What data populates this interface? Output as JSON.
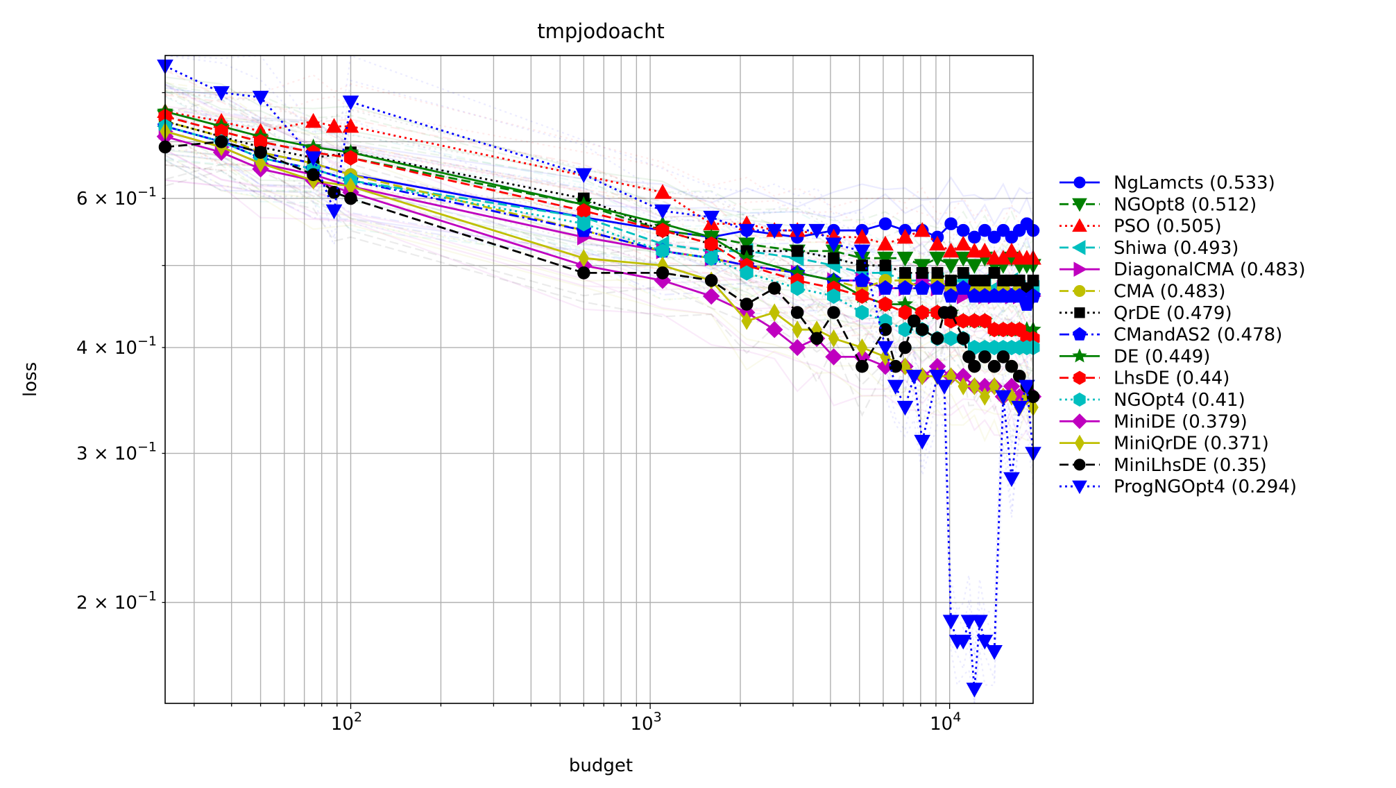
{
  "chart_data": {
    "type": "line",
    "title": "tmpjodoacht",
    "xlabel": "budget",
    "ylabel": "loss",
    "xscale": "log",
    "yscale": "log",
    "xlim": [
      24,
      19000
    ],
    "ylim": [
      0.152,
      0.885
    ],
    "grid": true,
    "legend_position": "right",
    "x_ticks": [
      {
        "value": 100,
        "base": "10",
        "exp": "2"
      },
      {
        "value": 1000,
        "base": "10",
        "exp": "3"
      },
      {
        "value": 10000,
        "base": "10",
        "exp": "4"
      }
    ],
    "y_ticks": [
      {
        "value": 0.2,
        "mant": "2",
        "base": "10",
        "exp": "−1"
      },
      {
        "value": 0.3,
        "mant": "3",
        "base": "10",
        "exp": "−1"
      },
      {
        "value": 0.4,
        "mant": "4",
        "base": "10",
        "exp": "−1"
      },
      {
        "value": 0.6,
        "mant": "6",
        "base": "10",
        "exp": "−1"
      }
    ],
    "series": [
      {
        "name": "NgLamcts (0.533)",
        "color": "#0000ff",
        "dash": "solid",
        "marker": "circle",
        "x": [
          24,
          37,
          50,
          75,
          100,
          600,
          1100,
          1600,
          2100,
          3100,
          4100,
          5100,
          6100,
          7100,
          8100,
          9100,
          10100,
          11100,
          12100,
          13100,
          14100,
          15100,
          16100,
          17100,
          18100,
          19000
        ],
        "y": [
          0.73,
          0.7,
          0.68,
          0.66,
          0.64,
          0.57,
          0.55,
          0.54,
          0.55,
          0.54,
          0.55,
          0.55,
          0.56,
          0.55,
          0.55,
          0.54,
          0.56,
          0.55,
          0.54,
          0.55,
          0.54,
          0.55,
          0.54,
          0.55,
          0.56,
          0.55
        ]
      },
      {
        "name": "NGOpt8 (0.512)",
        "color": "#008000",
        "dash": "dashed",
        "marker": "tri-down",
        "x": [
          24,
          37,
          50,
          75,
          100,
          600,
          1100,
          1600,
          2100,
          3100,
          4100,
          5100,
          6100,
          7100,
          8100,
          9100,
          10100,
          11100,
          12100,
          13100,
          14100,
          15100,
          16100,
          17100,
          18100,
          19000
        ],
        "y": [
          0.75,
          0.72,
          0.7,
          0.68,
          0.67,
          0.59,
          0.55,
          0.54,
          0.53,
          0.52,
          0.52,
          0.51,
          0.51,
          0.51,
          0.5,
          0.51,
          0.5,
          0.51,
          0.5,
          0.51,
          0.5,
          0.5,
          0.51,
          0.5,
          0.5,
          0.5
        ]
      },
      {
        "name": "PSO (0.505)",
        "color": "#ff0000",
        "dash": "dotted",
        "marker": "tri-up",
        "x": [
          24,
          37,
          50,
          75,
          88,
          100,
          1100,
          1600,
          2100,
          2600,
          3100,
          4100,
          5100,
          6100,
          7100,
          8100,
          9100,
          10100,
          11100,
          12100,
          13100,
          14100,
          15100,
          16100,
          17100,
          18100,
          19000
        ],
        "y": [
          0.76,
          0.74,
          0.72,
          0.74,
          0.73,
          0.73,
          0.61,
          0.56,
          0.56,
          0.55,
          0.55,
          0.54,
          0.54,
          0.53,
          0.54,
          0.55,
          0.53,
          0.52,
          0.53,
          0.52,
          0.52,
          0.51,
          0.51,
          0.52,
          0.51,
          0.51,
          0.51
        ]
      },
      {
        "name": "Shiwa (0.493)",
        "color": "#00bfbf",
        "dash": "dashed",
        "marker": "tri-left",
        "x": [
          24,
          37,
          50,
          75,
          100,
          600,
          1100,
          1600,
          2100,
          3100,
          4100,
          5100,
          6100,
          7100,
          8100,
          9100,
          10100,
          11100,
          12100,
          13100,
          14100,
          15100,
          16100,
          17100,
          18100,
          19000
        ],
        "y": [
          0.73,
          0.7,
          0.67,
          0.65,
          0.63,
          0.57,
          0.53,
          0.52,
          0.52,
          0.51,
          0.5,
          0.49,
          0.49,
          0.48,
          0.48,
          0.48,
          0.47,
          0.48,
          0.47,
          0.48,
          0.47,
          0.47,
          0.48,
          0.47,
          0.47,
          0.47
        ]
      },
      {
        "name": "DiagonalCMA (0.483)",
        "color": "#bf00bf",
        "dash": "solid",
        "marker": "tri-right",
        "x": [
          24,
          37,
          50,
          75,
          100,
          600,
          1100,
          1600,
          2100,
          3100,
          4100,
          5100,
          6100,
          7100,
          8100,
          9100,
          10100,
          11100,
          12100,
          13100,
          14100,
          15100,
          16100,
          17100,
          18100,
          19000
        ],
        "y": [
          0.72,
          0.69,
          0.66,
          0.64,
          0.62,
          0.54,
          0.52,
          0.51,
          0.5,
          0.49,
          0.48,
          0.48,
          0.47,
          0.47,
          0.48,
          0.47,
          0.47,
          0.46,
          0.47,
          0.46,
          0.46,
          0.47,
          0.46,
          0.46,
          0.46,
          0.46
        ]
      },
      {
        "name": "CMA (0.483)",
        "color": "#bfbf00",
        "dash": "dashed",
        "marker": "circle",
        "x": [
          24,
          37,
          50,
          75,
          100,
          600,
          1100,
          1600,
          2100,
          3100,
          4100,
          5100,
          6100,
          7100,
          8100,
          9100,
          10100,
          11100,
          12100,
          13100,
          14100,
          15100,
          16100,
          17100,
          18100,
          19000
        ],
        "y": [
          0.74,
          0.71,
          0.68,
          0.66,
          0.64,
          0.55,
          0.52,
          0.51,
          0.5,
          0.49,
          0.48,
          0.47,
          0.48,
          0.48,
          0.47,
          0.48,
          0.47,
          0.47,
          0.47,
          0.47,
          0.46,
          0.47,
          0.46,
          0.47,
          0.46,
          0.46
        ]
      },
      {
        "name": "QrDE (0.479)",
        "color": "#000000",
        "dash": "dotted",
        "marker": "square",
        "x": [
          24,
          37,
          50,
          75,
          100,
          600,
          1100,
          1600,
          2100,
          3100,
          4100,
          5100,
          6100,
          7100,
          8100,
          9100,
          10100,
          11100,
          12100,
          13100,
          14100,
          15100,
          16100,
          17100,
          18100,
          19000
        ],
        "y": [
          0.74,
          0.71,
          0.69,
          0.67,
          0.68,
          0.6,
          0.55,
          0.53,
          0.52,
          0.52,
          0.51,
          0.5,
          0.5,
          0.49,
          0.49,
          0.49,
          0.48,
          0.49,
          0.48,
          0.48,
          0.49,
          0.48,
          0.48,
          0.48,
          0.47,
          0.48
        ]
      },
      {
        "name": "CMandAS2 (0.478)",
        "color": "#0000ff",
        "dash": "dashdot",
        "marker": "pentagon",
        "x": [
          24,
          37,
          50,
          75,
          100,
          600,
          1100,
          1600,
          2100,
          3100,
          4100,
          5100,
          6100,
          7100,
          8100,
          9100,
          10100,
          11100,
          12100,
          13100,
          14100,
          15100,
          16100,
          17100,
          18100,
          19000
        ],
        "y": [
          0.73,
          0.7,
          0.67,
          0.65,
          0.63,
          0.55,
          0.52,
          0.51,
          0.5,
          0.49,
          0.48,
          0.48,
          0.47,
          0.47,
          0.47,
          0.47,
          0.46,
          0.47,
          0.46,
          0.46,
          0.46,
          0.46,
          0.46,
          0.46,
          0.45,
          0.46
        ]
      },
      {
        "name": "DE (0.449)",
        "color": "#008000",
        "dash": "solid",
        "marker": "star",
        "x": [
          24,
          37,
          50,
          75,
          100,
          600,
          1100,
          1600,
          2100,
          3100,
          4100,
          5100,
          6100,
          7100,
          8100,
          9100,
          10100,
          11100,
          12100,
          13100,
          14100,
          15100,
          16100,
          17100,
          18100,
          19000
        ],
        "y": [
          0.76,
          0.73,
          0.71,
          0.69,
          0.68,
          0.59,
          0.56,
          0.54,
          0.51,
          0.49,
          0.48,
          0.46,
          0.45,
          0.45,
          0.44,
          0.44,
          0.44,
          0.43,
          0.43,
          0.43,
          0.42,
          0.42,
          0.42,
          0.42,
          0.42,
          0.42
        ]
      },
      {
        "name": "LhsDE (0.44)",
        "color": "#ff0000",
        "dash": "dashed",
        "marker": "hexagon",
        "x": [
          24,
          37,
          50,
          75,
          100,
          600,
          1100,
          1600,
          2100,
          3100,
          4100,
          5100,
          6100,
          7100,
          8100,
          9100,
          10100,
          11100,
          12100,
          13100,
          14100,
          15100,
          16100,
          17100,
          18100,
          19000
        ],
        "y": [
          0.75,
          0.72,
          0.7,
          0.68,
          0.67,
          0.58,
          0.55,
          0.53,
          0.5,
          0.48,
          0.47,
          0.46,
          0.45,
          0.44,
          0.44,
          0.44,
          0.43,
          0.43,
          0.43,
          0.43,
          0.42,
          0.42,
          0.42,
          0.42,
          0.41,
          0.41
        ]
      },
      {
        "name": "NGOpt4 (0.41)",
        "color": "#00bfbf",
        "dash": "dotted",
        "marker": "hexagon",
        "x": [
          24,
          37,
          50,
          75,
          100,
          600,
          1100,
          1600,
          2100,
          3100,
          4100,
          5100,
          6100,
          7100,
          8100,
          9100,
          10100,
          11100,
          12100,
          13100,
          14100,
          15100,
          16100,
          17100,
          18100,
          19000
        ],
        "y": [
          0.73,
          0.7,
          0.67,
          0.65,
          0.63,
          0.56,
          0.52,
          0.51,
          0.49,
          0.47,
          0.46,
          0.44,
          0.43,
          0.42,
          0.42,
          0.41,
          0.41,
          0.41,
          0.4,
          0.4,
          0.4,
          0.4,
          0.4,
          0.4,
          0.4,
          0.4
        ]
      },
      {
        "name": "MiniDE (0.379)",
        "color": "#bf00bf",
        "dash": "solid",
        "marker": "diamond",
        "x": [
          24,
          37,
          50,
          75,
          100,
          600,
          1100,
          1600,
          2100,
          2600,
          3100,
          3600,
          4100,
          5100,
          6100,
          7100,
          8100,
          9100,
          10100,
          11100,
          12100,
          13100,
          14100,
          15100,
          16100,
          17100,
          18100,
          19000
        ],
        "y": [
          0.71,
          0.68,
          0.65,
          0.63,
          0.61,
          0.5,
          0.48,
          0.46,
          0.44,
          0.42,
          0.4,
          0.41,
          0.39,
          0.39,
          0.38,
          0.38,
          0.37,
          0.38,
          0.37,
          0.37,
          0.36,
          0.36,
          0.36,
          0.35,
          0.36,
          0.35,
          0.35,
          0.35
        ]
      },
      {
        "name": "MiniQrDE (0.371)",
        "color": "#bfbf00",
        "dash": "solid",
        "marker": "thin-diamond",
        "x": [
          24,
          37,
          50,
          75,
          100,
          600,
          1100,
          1600,
          2100,
          2600,
          3100,
          3600,
          4100,
          5100,
          6100,
          7100,
          8100,
          9100,
          10100,
          11100,
          12100,
          13100,
          14100,
          15100,
          16100,
          17100,
          18100,
          19000
        ],
        "y": [
          0.72,
          0.69,
          0.66,
          0.63,
          0.62,
          0.51,
          0.5,
          0.48,
          0.43,
          0.44,
          0.42,
          0.42,
          0.41,
          0.4,
          0.39,
          0.38,
          0.37,
          0.37,
          0.37,
          0.36,
          0.36,
          0.35,
          0.36,
          0.35,
          0.35,
          0.34,
          0.35,
          0.34
        ]
      },
      {
        "name": "MiniLhsDE (0.35)",
        "color": "#000000",
        "dash": "dashed",
        "marker": "circle",
        "x": [
          24,
          37,
          50,
          75,
          88,
          100,
          600,
          1100,
          1600,
          2100,
          2600,
          3100,
          3600,
          4100,
          5100,
          6100,
          6600,
          7100,
          7600,
          8100,
          9100,
          9600,
          10100,
          11100,
          11600,
          12100,
          13100,
          14100,
          15100,
          16100,
          17100,
          18100,
          19000
        ],
        "y": [
          0.69,
          0.7,
          0.68,
          0.64,
          0.61,
          0.6,
          0.49,
          0.49,
          0.48,
          0.45,
          0.47,
          0.44,
          0.41,
          0.44,
          0.38,
          0.42,
          0.38,
          0.4,
          0.43,
          0.42,
          0.41,
          0.44,
          0.44,
          0.41,
          0.39,
          0.38,
          0.39,
          0.38,
          0.39,
          0.38,
          0.37,
          0.36,
          0.35
        ]
      },
      {
        "name": "ProgNGOpt4 (0.294)",
        "color": "#0000ff",
        "dash": "dotted",
        "marker": "tri-down",
        "x": [
          24,
          37,
          50,
          75,
          88,
          100,
          600,
          1100,
          1600,
          2100,
          2600,
          3100,
          3600,
          4100,
          5100,
          6100,
          6600,
          7100,
          7600,
          8100,
          9100,
          9600,
          10100,
          10600,
          11100,
          11600,
          12100,
          12600,
          13100,
          14100,
          15100,
          16100,
          17100,
          18100,
          19000
        ],
        "y": [
          0.86,
          0.8,
          0.79,
          0.67,
          0.58,
          0.78,
          0.64,
          0.58,
          0.57,
          0.55,
          0.55,
          0.55,
          0.55,
          0.53,
          0.52,
          0.4,
          0.36,
          0.34,
          0.37,
          0.31,
          0.37,
          0.36,
          0.19,
          0.18,
          0.18,
          0.19,
          0.158,
          0.19,
          0.18,
          0.175,
          0.35,
          0.28,
          0.34,
          0.36,
          0.3
        ]
      }
    ]
  }
}
